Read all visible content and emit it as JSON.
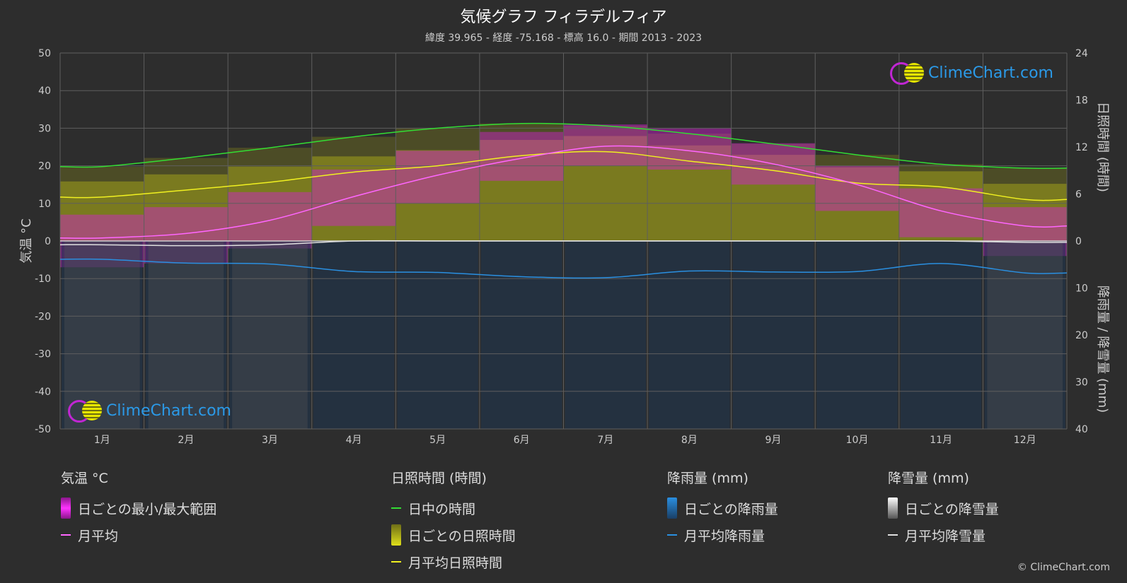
{
  "title": "気候グラフ フィラデルフィア",
  "subtitle": "緯度 39.965 - 経度 -75.168 - 標高 16.0 - 期間 2013 - 2023",
  "logo_text": "ClimeChart.com",
  "copyright": "© ClimeChart.com",
  "colors": {
    "background": "#2d2d2d",
    "temp_range": "#d21fd2",
    "temp_mean": "#ff66ff",
    "daylight": "#33dd33",
    "sunshine_fill": "#b5b520",
    "sunshine_mean": "#f0f020",
    "rain": "#2a8fe0",
    "snow": "#e0e0e0"
  },
  "chart_data": {
    "type": "line",
    "categories": [
      "1月",
      "2月",
      "3月",
      "4月",
      "5月",
      "6月",
      "7月",
      "8月",
      "9月",
      "10月",
      "11月",
      "12月"
    ],
    "y_left": {
      "label": "気温 °C",
      "range": [
        -50,
        50
      ],
      "ticks": [
        50,
        40,
        30,
        20,
        10,
        0,
        -10,
        -20,
        -30,
        -40,
        -50
      ]
    },
    "y_right_top": {
      "label": "日照時間 (時間)",
      "range": [
        0,
        24
      ],
      "ticks": [
        24,
        18,
        12,
        6,
        0
      ]
    },
    "y_right_bottom": {
      "label": "降雨量 / 降雪量 (mm)",
      "range": [
        0,
        40
      ],
      "ticks": [
        10,
        20,
        30,
        40
      ]
    },
    "grid": true,
    "series": [
      {
        "name": "日中の時間",
        "axis": "sunshine_hours",
        "values": [
          9.5,
          10.6,
          11.9,
          13.3,
          14.4,
          15.0,
          14.7,
          13.7,
          12.4,
          11.0,
          9.8,
          9.3
        ]
      },
      {
        "name": "月平均日照時間",
        "axis": "sunshine_hours",
        "values": [
          5.6,
          6.5,
          7.5,
          8.8,
          9.6,
          10.9,
          11.4,
          10.2,
          9.0,
          7.4,
          6.9,
          5.3
        ]
      },
      {
        "name": "月平均",
        "axis": "temperature",
        "values": [
          0.8,
          2.0,
          5.5,
          11.8,
          17.5,
          22.0,
          25.2,
          24.0,
          20.5,
          15.0,
          8.0,
          4.0
        ]
      },
      {
        "name": "月平均降雨量",
        "axis": "precipitation",
        "values": [
          3.9,
          4.7,
          4.9,
          6.5,
          6.7,
          7.6,
          7.8,
          6.4,
          6.6,
          6.5,
          4.8,
          6.8
        ]
      },
      {
        "name": "月平均降雪量",
        "axis": "precipitation",
        "values": [
          0.8,
          1.0,
          0.8,
          0.0,
          0.0,
          0.0,
          0.0,
          0.0,
          0.0,
          0.0,
          0.0,
          0.3
        ]
      }
    ],
    "daily_range_envelope": {
      "min": [
        -7.0,
        -6.0,
        -2.0,
        4.0,
        10.0,
        16.0,
        20.0,
        19.0,
        15.0,
        8.0,
        1.0,
        -4.0
      ],
      "max": [
        7.0,
        9.0,
        13.0,
        19.0,
        24.0,
        29.0,
        31.0,
        30.0,
        26.0,
        20.0,
        14.0,
        9.0
      ]
    }
  },
  "legend": {
    "groups": [
      {
        "header": "気温 °C",
        "items": [
          {
            "label": "日ごとの最小/最大範囲",
            "kind": "bar",
            "color": "#d21fd2"
          },
          {
            "label": "月平均",
            "kind": "line",
            "color": "#ff66ff"
          }
        ]
      },
      {
        "header": "日照時間 (時間)",
        "items": [
          {
            "label": "日中の時間",
            "kind": "line",
            "color": "#33dd33"
          },
          {
            "label": "日ごとの日照時間",
            "kind": "bar",
            "color": "#c8c81e"
          },
          {
            "label": "月平均日照時間",
            "kind": "line",
            "color": "#f0f020"
          }
        ]
      },
      {
        "header": "降雨量 (mm)",
        "items": [
          {
            "label": "日ごとの降雨量",
            "kind": "bar",
            "color": "#2a8fe0"
          },
          {
            "label": "月平均降雨量",
            "kind": "line",
            "color": "#2a8fe0"
          }
        ]
      },
      {
        "header": "降雪量 (mm)",
        "items": [
          {
            "label": "日ごとの降雪量",
            "kind": "bar",
            "color": "#e0e0e0"
          },
          {
            "label": "月平均降雪量",
            "kind": "line",
            "color": "#e0e0e0"
          }
        ]
      }
    ]
  }
}
